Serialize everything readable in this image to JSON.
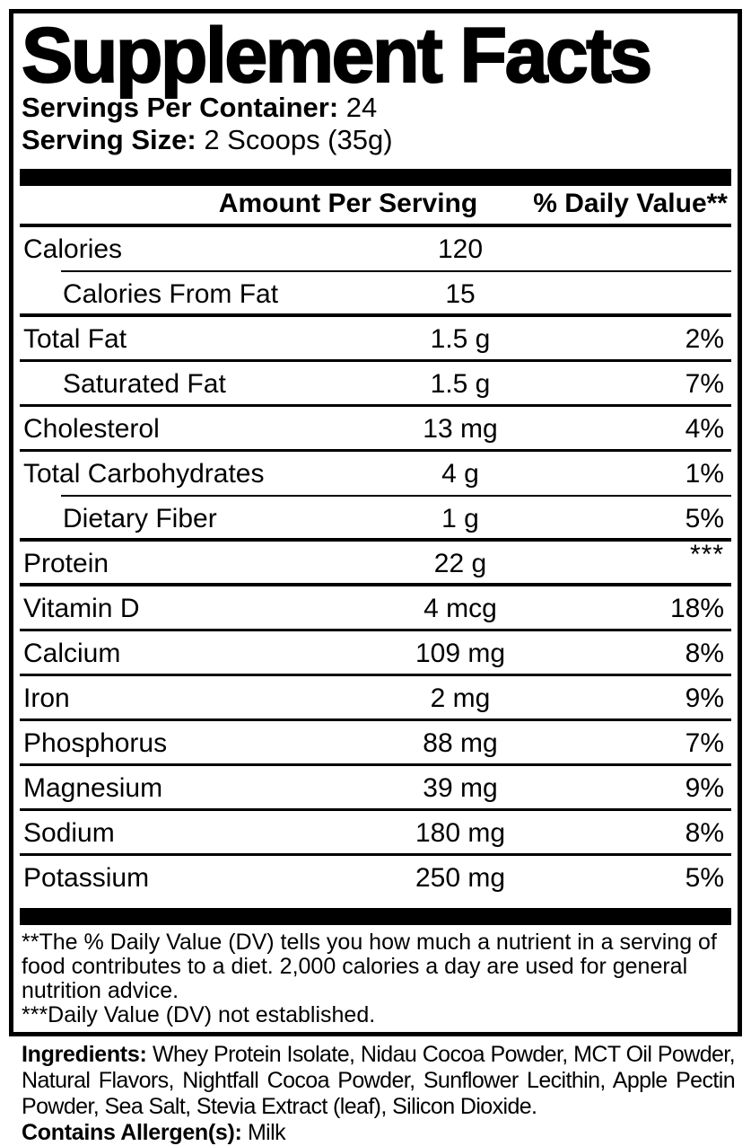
{
  "panel": {
    "title": "Supplement Facts",
    "servings_per_container_label": "Servings Per Container:",
    "servings_per_container_value": "24",
    "serving_size_label": "Serving Size:",
    "serving_size_value": "2 Scoops (35g)",
    "columns": {
      "amount": "Amount Per Serving",
      "daily_value": "% Daily Value**"
    },
    "rows": [
      {
        "name": "Calories",
        "amount": "120",
        "dv": "",
        "indent": false,
        "separator": "indent"
      },
      {
        "name": "Calories From Fat",
        "amount": "15",
        "dv": "",
        "indent": true,
        "separator": "thick"
      },
      {
        "name": "Total Fat",
        "amount": "1.5 g",
        "dv": "2%",
        "indent": false,
        "separator": "normal"
      },
      {
        "name": "Saturated Fat",
        "amount": "1.5 g",
        "dv": "7%",
        "indent": true,
        "separator": "normal"
      },
      {
        "name": "Cholesterol",
        "amount": "13 mg",
        "dv": "4%",
        "indent": false,
        "separator": "normal"
      },
      {
        "name": "Total Carbohydrates",
        "amount": "4 g",
        "dv": "1%",
        "indent": false,
        "separator": "indent"
      },
      {
        "name": "Dietary Fiber",
        "amount": "1 g",
        "dv": "5%",
        "indent": true,
        "separator": "thick"
      },
      {
        "name": "Protein",
        "amount": "22 g",
        "dv": "***",
        "indent": false,
        "separator": "thick",
        "dv_raised": true
      },
      {
        "name": "Vitamin D",
        "amount": "4 mcg",
        "dv": "18%",
        "indent": false,
        "separator": "normal"
      },
      {
        "name": "Calcium",
        "amount": "109 mg",
        "dv": "8%",
        "indent": false,
        "separator": "normal"
      },
      {
        "name": "Iron",
        "amount": "2 mg",
        "dv": "9%",
        "indent": false,
        "separator": "normal"
      },
      {
        "name": "Phosphorus",
        "amount": "88 mg",
        "dv": "7%",
        "indent": false,
        "separator": "normal"
      },
      {
        "name": "Magnesium",
        "amount": "39 mg",
        "dv": "9%",
        "indent": false,
        "separator": "normal"
      },
      {
        "name": "Sodium",
        "amount": "180 mg",
        "dv": "8%",
        "indent": false,
        "separator": "normal"
      },
      {
        "name": "Potassium",
        "amount": "250 mg",
        "dv": "5%",
        "indent": false,
        "separator": "none"
      }
    ],
    "footnote_lines": [
      "**The % Daily Value (DV) tells you how much a nutrient in a serving of",
      "food contributes to a diet. 2,000 calories a day are used for general",
      "nutrition advice.",
      "***Daily Value (DV) not established."
    ]
  },
  "ingredients": {
    "label": "Ingredients:",
    "text": "Whey Protein Isolate, Nidau Cocoa Powder, MCT Oil Powder, Natural Flavors, Nightfall Cocoa Powder, Sunflower Lecithin, Apple Pectin Powder, Sea Salt, Stevia Extract (leaf), Silicon Dioxide.",
    "allergen_label": "Contains Allergen(s):",
    "allergen_value": "Milk"
  },
  "colors": {
    "ink": "#000000",
    "background": "#ffffff"
  }
}
